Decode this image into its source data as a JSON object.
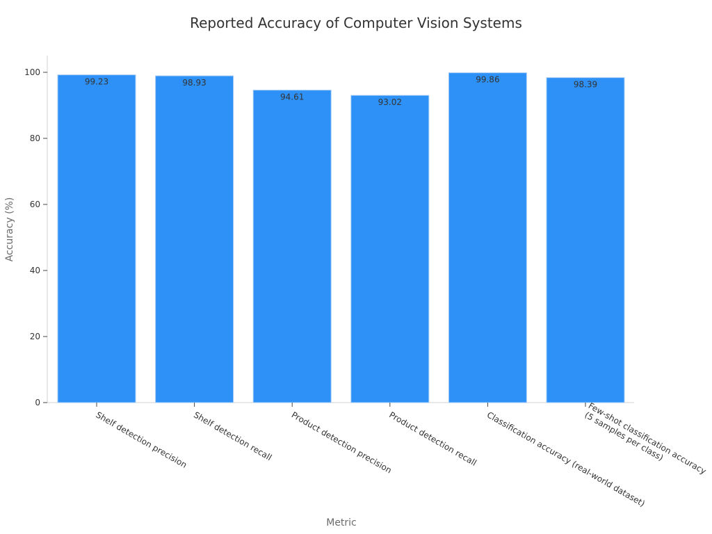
{
  "chart_data": {
    "type": "bar",
    "title": "Reported Accuracy of Computer Vision Systems",
    "xlabel": "Metric",
    "ylabel": "Accuracy (%)",
    "ylim": [
      0,
      105
    ],
    "yticks": [
      "0",
      "20",
      "40",
      "60",
      "80",
      "100"
    ],
    "grid": false,
    "bar_color": "#2E91F7",
    "categories": [
      [
        "Shelf detection precision"
      ],
      [
        "Shelf detection recall"
      ],
      [
        "Product detection precision"
      ],
      [
        "Product detection recall"
      ],
      [
        "Classification accuracy (real-world dataset)"
      ],
      [
        "Few-shot classification accuracy",
        "(5 samples per class)"
      ]
    ],
    "values": [
      99.23,
      98.93,
      94.61,
      93.02,
      99.86,
      98.39
    ],
    "value_labels": [
      "99.23",
      "98.93",
      "94.61",
      "93.02",
      "99.86",
      "98.39"
    ]
  }
}
